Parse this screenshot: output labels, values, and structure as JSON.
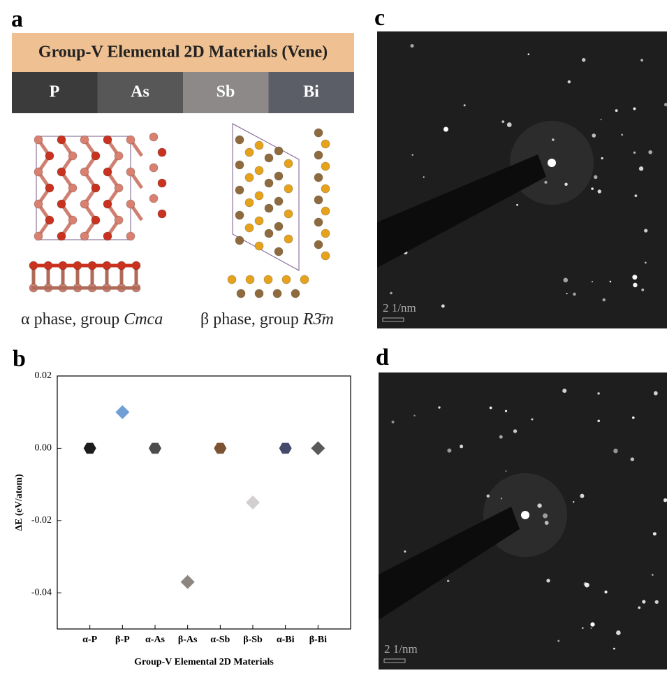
{
  "panels": {
    "a": {
      "label": "a",
      "banner": "Group-V Elemental 2D Materials (Vene)",
      "elements": [
        "P",
        "As",
        "Sb",
        "Bi"
      ],
      "alpha_caption": "α phase, group ",
      "alpha_group": "Cmca",
      "beta_caption": "β phase, group ",
      "beta_group": "R3̄m"
    },
    "b": {
      "label": "b"
    },
    "c": {
      "label": "c",
      "scale": "2 1/nm"
    },
    "d": {
      "label": "d",
      "scale": "2 1/nm"
    }
  },
  "chart_data": {
    "type": "scatter",
    "categories": [
      "α-P",
      "β-P",
      "α-As",
      "β-As",
      "α-Sb",
      "β-Sb",
      "α-Bi",
      "β-Bi"
    ],
    "values": [
      0,
      0.01,
      0,
      -0.037,
      0,
      -0.015,
      0,
      0
    ],
    "colors": [
      "#1c1c1c",
      "#6f9fd4",
      "#4c4c4c",
      "#8d8580",
      "#7b5232",
      "#d3cfcf",
      "#45496a",
      "#5a5a5a"
    ],
    "markers": [
      "hexagon",
      "diamond",
      "hexagon",
      "diamond",
      "hexagon",
      "diamond",
      "hexagon",
      "diamond"
    ],
    "xlabel": "Group-V Elemental 2D Materials",
    "ylabel": "ΔE (eV/atom)",
    "ylim": [
      -0.05,
      0.02
    ],
    "yticks": [
      0.02,
      {
        "value": 0,
        "label": "0.00"
      },
      -0.02,
      -0.04
    ]
  }
}
